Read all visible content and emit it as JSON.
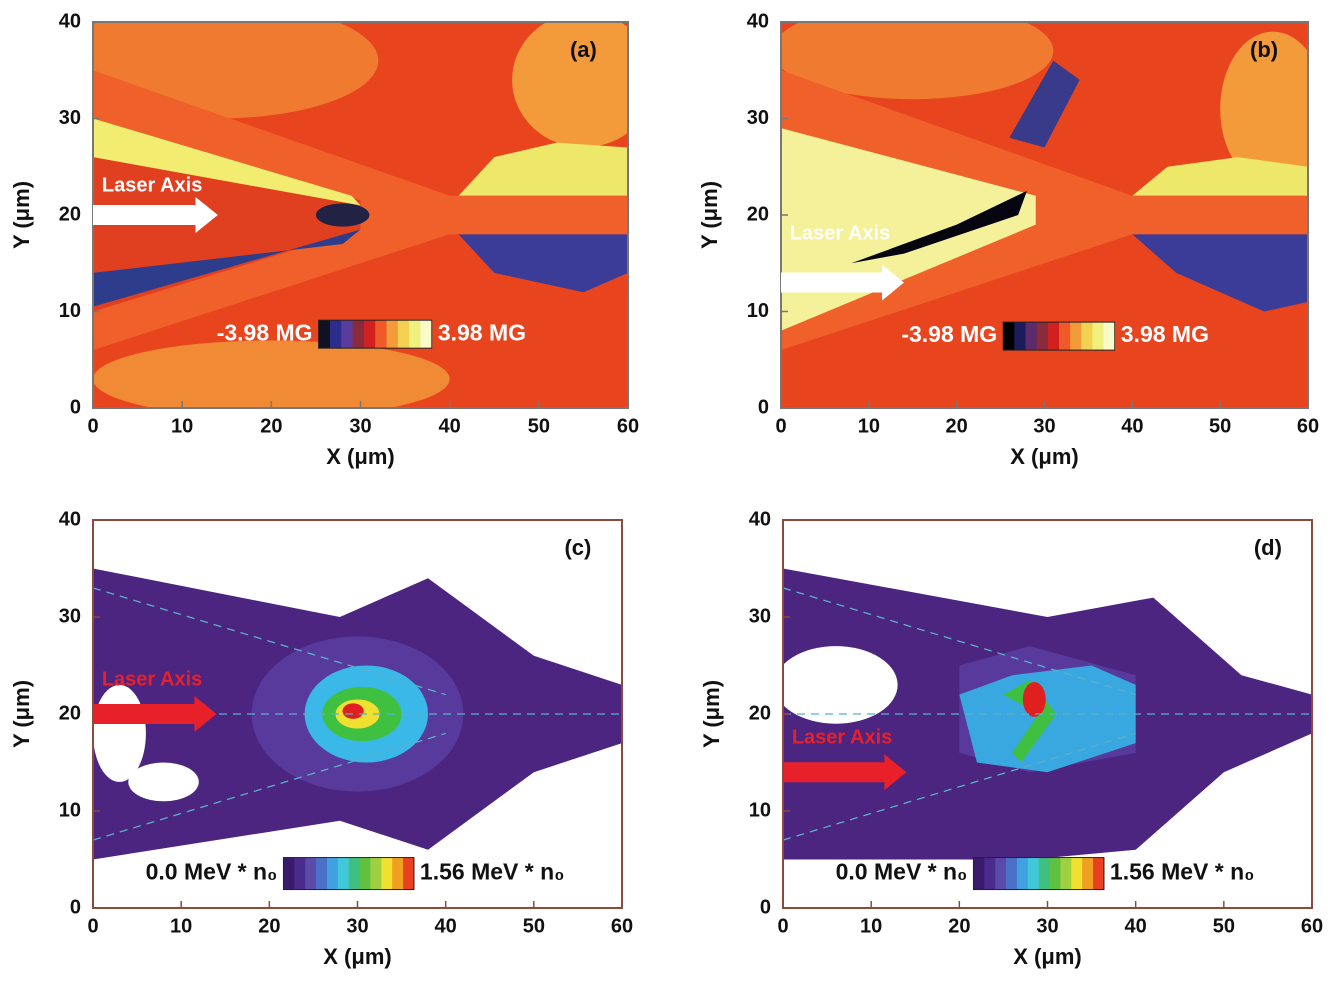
{
  "chart_data": [
    {
      "type": "heatmap",
      "panel_label": "(a)",
      "xlabel": "X (μm)",
      "ylabel": "Y (μm)",
      "xlim": [
        0,
        60
      ],
      "ylim": [
        0,
        40
      ],
      "xticks": [
        0,
        10,
        20,
        30,
        40,
        50,
        60
      ],
      "yticks": [
        0,
        10,
        20,
        30,
        40
      ],
      "annotation": "Laser Axis",
      "annotation_color": "#ffffff",
      "frame_color": "#777777",
      "colorbar": {
        "min": {
          "value": -3.98,
          "label": "-3.98 MG"
        },
        "max": {
          "value": 3.98,
          "label": "3.98 MG"
        },
        "colors": [
          "#111122",
          "#2c2c8c",
          "#5b3b9b",
          "#8a2a3a",
          "#d02020",
          "#f05a28",
          "#f39a3a",
          "#f2d050",
          "#f0f080",
          "#fafac8"
        ]
      }
    },
    {
      "type": "heatmap",
      "panel_label": "(b)",
      "xlabel": "X (μm)",
      "ylabel": "Y (μm)",
      "xlim": [
        0,
        60
      ],
      "ylim": [
        0,
        40
      ],
      "xticks": [
        0,
        10,
        20,
        30,
        40,
        50,
        60
      ],
      "yticks": [
        0,
        10,
        20,
        30,
        40
      ],
      "annotation": "Laser Axis",
      "annotation_color": "#ffffff",
      "frame_color": "#777777",
      "colorbar": {
        "min": {
          "value": -3.98,
          "label": "-3.98 MG"
        },
        "max": {
          "value": 3.98,
          "label": "3.98 MG"
        },
        "colors": [
          "#000000",
          "#1c1c5c",
          "#5b2b6b",
          "#8a2a3a",
          "#d02020",
          "#f05a28",
          "#f39a3a",
          "#f2d050",
          "#f0f080",
          "#fafac8"
        ]
      }
    },
    {
      "type": "heatmap",
      "panel_label": "(c)",
      "xlabel": "X (μm)",
      "ylabel": "Y (μm)",
      "xlim": [
        0,
        60
      ],
      "ylim": [
        0,
        40
      ],
      "xticks": [
        0,
        10,
        20,
        30,
        40,
        50,
        60
      ],
      "yticks": [
        0,
        10,
        20,
        30,
        40
      ],
      "annotation": "Laser Axis",
      "annotation_color": "#e8202a",
      "frame_color": "#8b4a3a",
      "colorbar": {
        "min": {
          "value": 0,
          "label": "0.0 MeV * n₀"
        },
        "max": {
          "value": 1.56,
          "label": "1.56 MeV * n₀"
        },
        "colors": [
          "#3a1a6a",
          "#4a2a8a",
          "#5a4aaa",
          "#4a70c8",
          "#40a0e0",
          "#40c8d8",
          "#40c080",
          "#60c040",
          "#a0d040",
          "#f0e030",
          "#f0a020",
          "#e84020"
        ]
      }
    },
    {
      "type": "heatmap",
      "panel_label": "(d)",
      "xlabel": "X (μm)",
      "ylabel": "Y (μm)",
      "xlim": [
        0,
        60
      ],
      "ylim": [
        0,
        40
      ],
      "xticks": [
        0,
        10,
        20,
        30,
        40,
        50,
        60
      ],
      "yticks": [
        0,
        10,
        20,
        30,
        40
      ],
      "annotation": "Laser Axis",
      "annotation_color": "#e8202a",
      "frame_color": "#8b4a3a",
      "colorbar": {
        "min": {
          "value": 0,
          "label": "0.0 MeV * n₀"
        },
        "max": {
          "value": 1.56,
          "label": "1.56 MeV * n₀"
        },
        "colors": [
          "#3a1a6a",
          "#4a2a8a",
          "#5a4aaa",
          "#4a70c8",
          "#40a0e0",
          "#40c8d8",
          "#40c080",
          "#60c040",
          "#a0d040",
          "#f0e030",
          "#f0a020",
          "#e84020"
        ]
      }
    }
  ]
}
